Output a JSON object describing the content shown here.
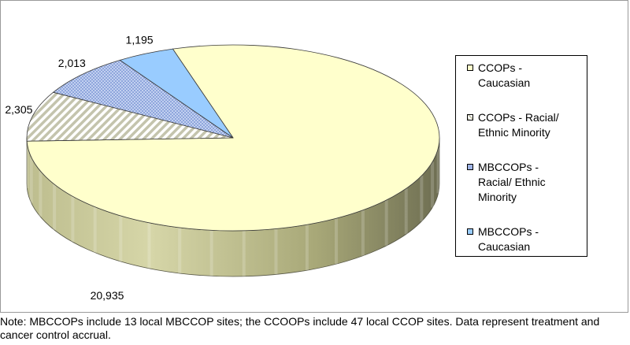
{
  "chart_data": {
    "type": "pie",
    "title": "",
    "slices": [
      {
        "label": "CCOPs - Caucasian",
        "value": 20935,
        "display": "20,935",
        "color": "#ffffcc",
        "pattern": "solid"
      },
      {
        "label": "CCOPs - Racial/ Ethnic Minority",
        "value": 2305,
        "display": "2,305",
        "color": "#d4d4c0",
        "pattern": "diagonal-stripes"
      },
      {
        "label": "MBCCOPs - Racial/ Ethnic Minority",
        "value": 2013,
        "display": "2,013",
        "color": "#b3c6ee",
        "pattern": "dotted"
      },
      {
        "label": "MBCCOPs - Caucasian",
        "value": 1195,
        "display": "1,195",
        "color": "#99ccff",
        "pattern": "solid"
      }
    ],
    "legend_position": "right",
    "style": "3d-pie"
  },
  "note": "Note: MBCCOPs include 13 local MBCCOP sites; the CCOOPs include 47 local CCOP sites. Data represent treatment and cancer control accrual."
}
